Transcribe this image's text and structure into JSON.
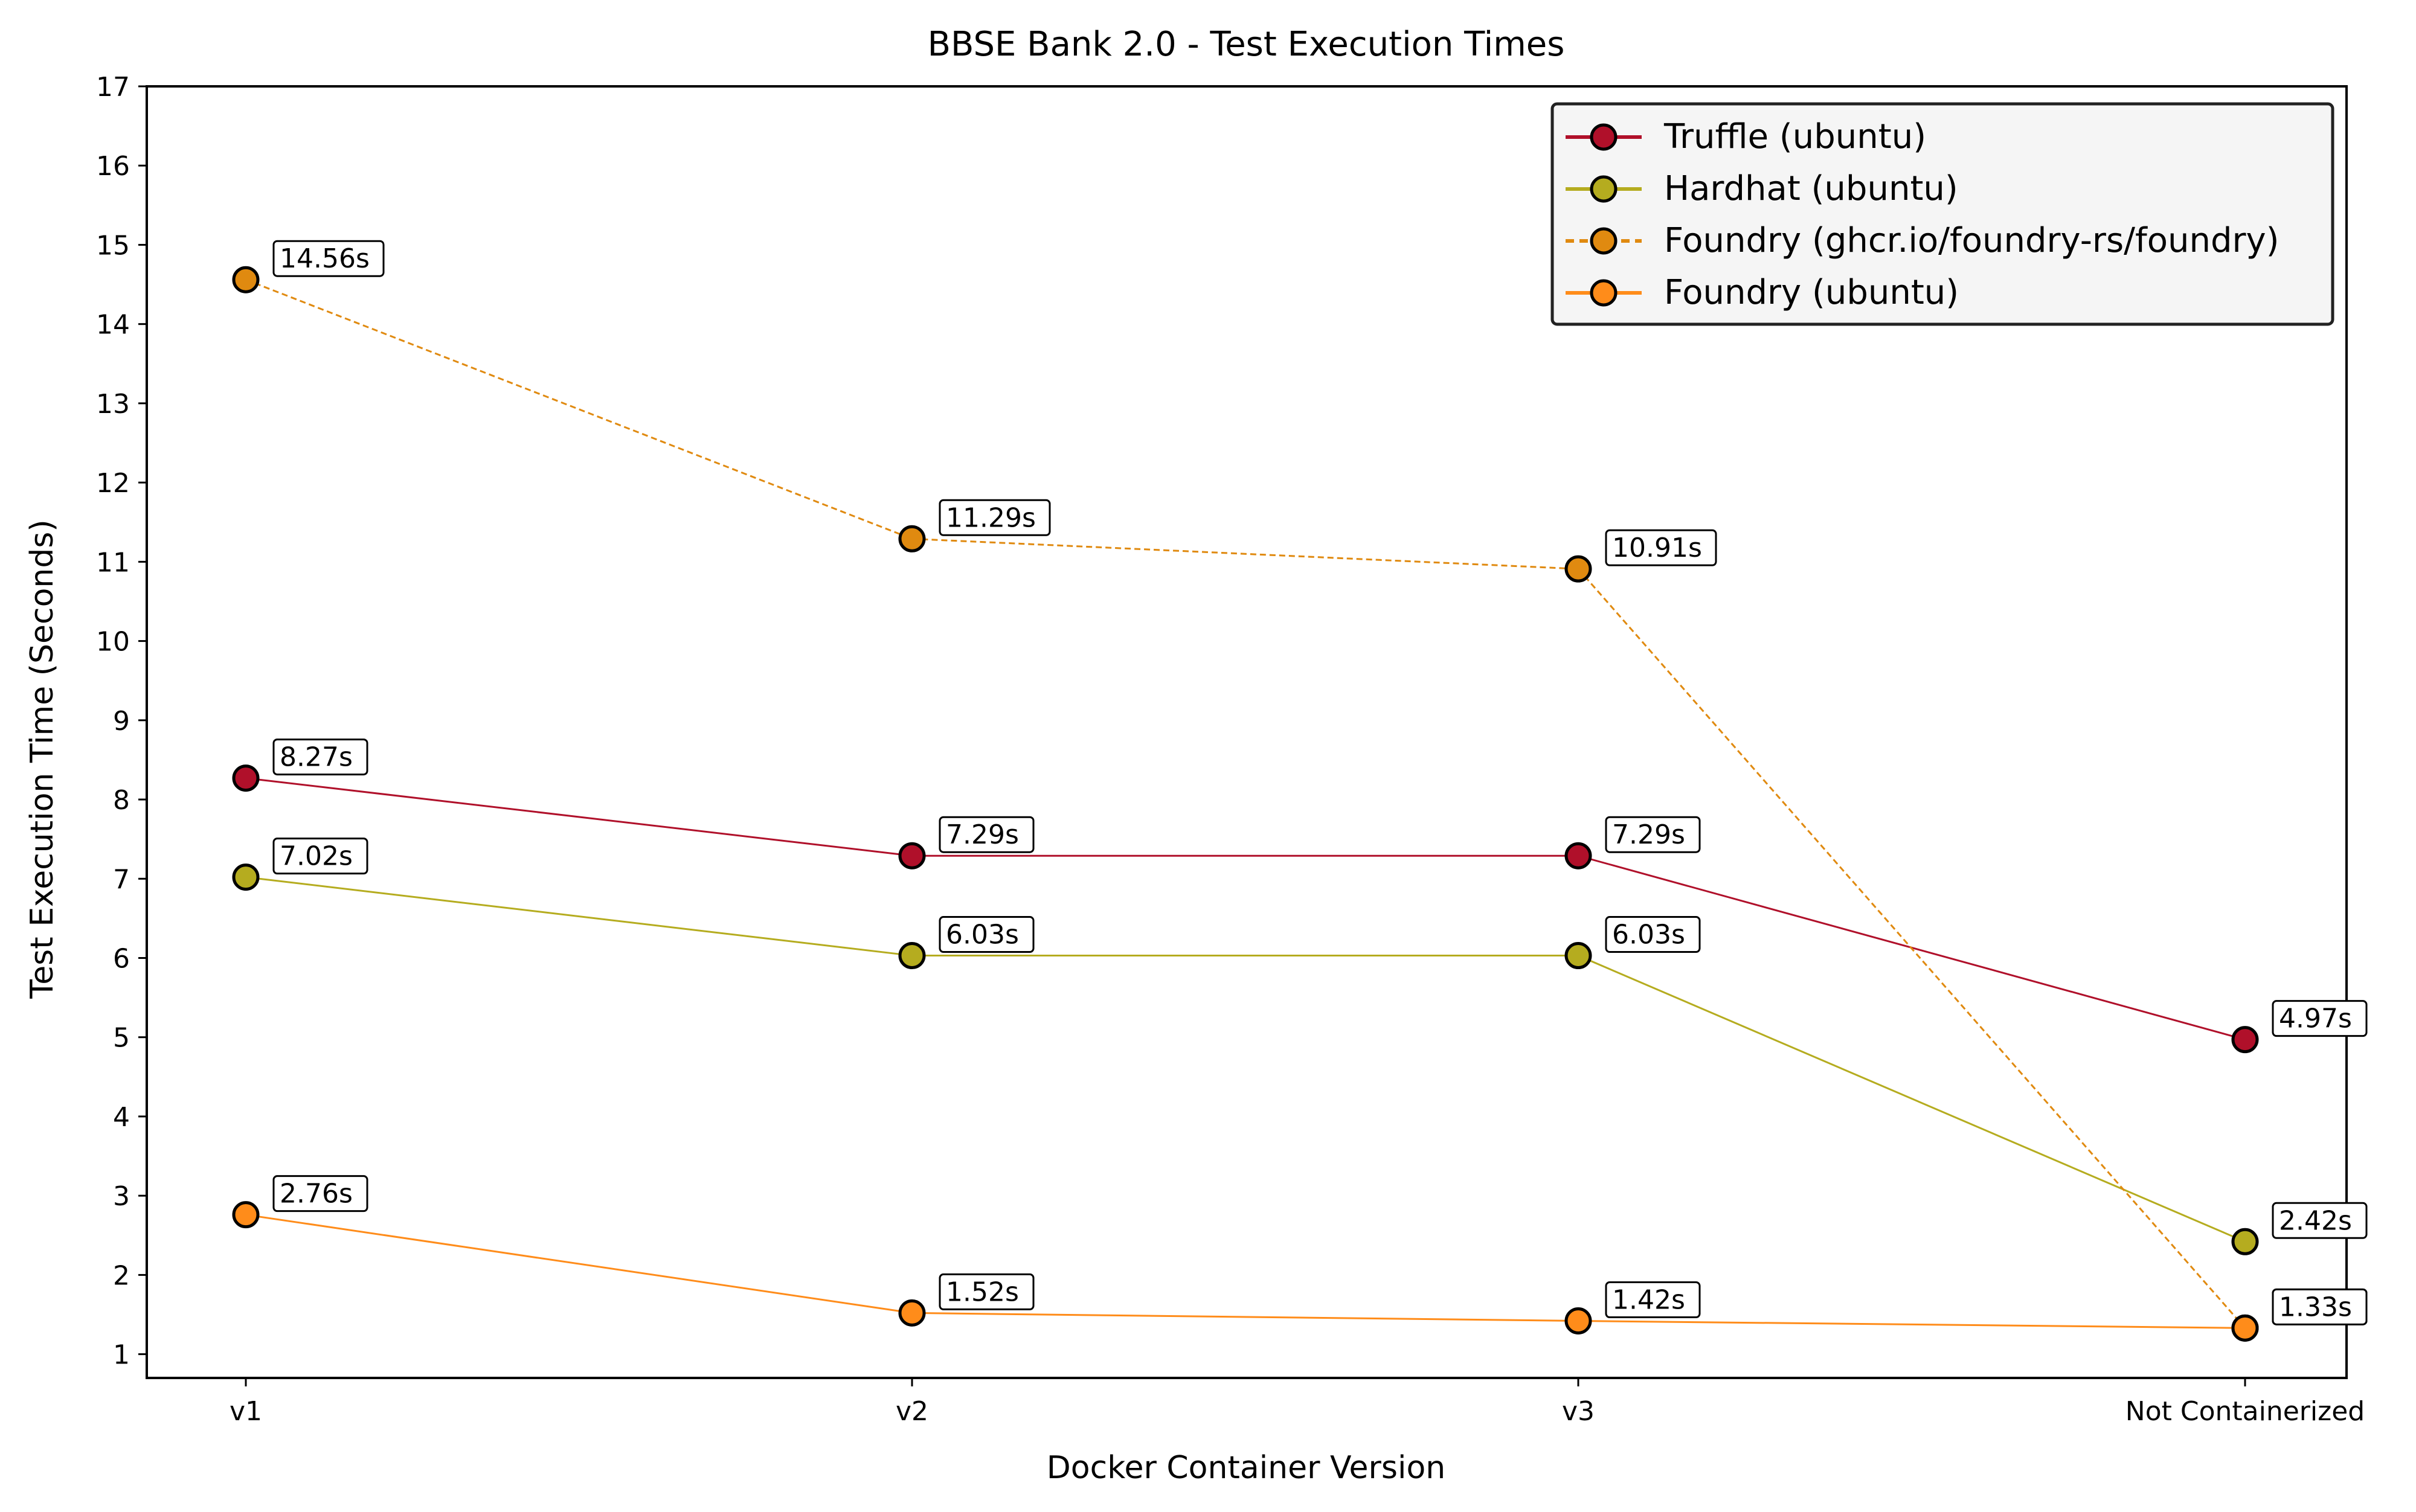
{
  "chart_data": {
    "type": "line",
    "title": "BBSE Bank 2.0 - Test Execution Times",
    "xlabel": "Docker Container Version",
    "ylabel": "Test Execution Time (Seconds)",
    "categories": [
      "v1",
      "v2",
      "v3",
      "Not Containerized"
    ],
    "ylim": [
      0.7,
      17
    ],
    "yticks": [
      1,
      2,
      3,
      4,
      5,
      6,
      7,
      8,
      9,
      10,
      11,
      12,
      13,
      14,
      15,
      16,
      17
    ],
    "grid": false,
    "legend_position": "top-right",
    "label_suffix": "s",
    "series": [
      {
        "name": "Truffle (ubuntu)",
        "color": "#b0102a",
        "line_style": "solid",
        "values": [
          8.27,
          7.29,
          7.29,
          4.97
        ]
      },
      {
        "name": "Hardhat (ubuntu)",
        "color": "#b5ac1f",
        "line_style": "solid",
        "values": [
          7.02,
          6.03,
          6.03,
          2.42
        ]
      },
      {
        "name": "Foundry (ghcr.io/foundry-rs/foundry)",
        "color": "#e08a10",
        "line_style": "dashed",
        "values": [
          14.56,
          11.29,
          10.91,
          1.33
        ]
      },
      {
        "name": "Foundry (ubuntu)",
        "color": "#ff8c1a",
        "line_style": "solid",
        "values": [
          2.76,
          1.52,
          1.42,
          1.33
        ]
      }
    ]
  }
}
